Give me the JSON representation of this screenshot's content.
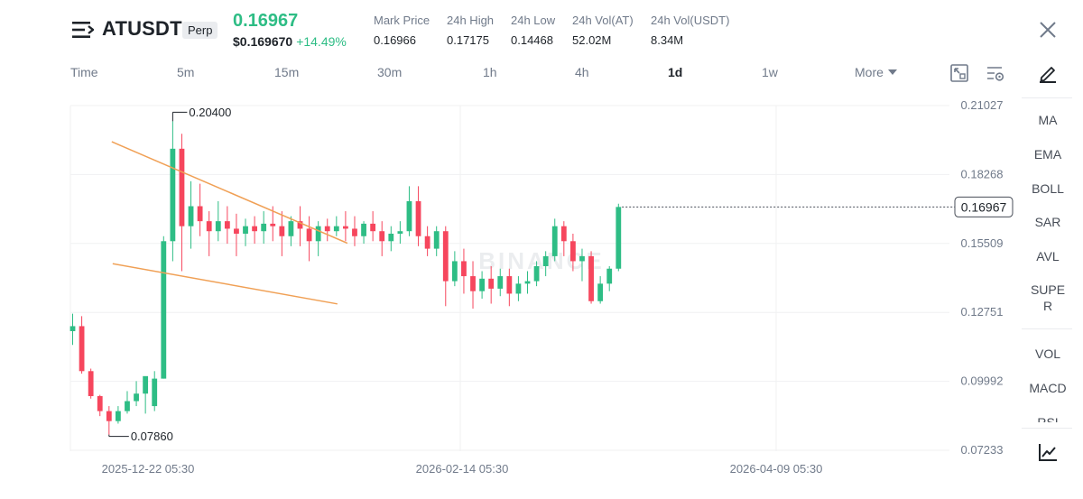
{
  "header": {
    "symbol": "ATUSDT",
    "contract_type": "Perp",
    "last_price": "0.16967",
    "usd_price": "$0.169670",
    "change_pct": "+14.49%",
    "stats": [
      {
        "label": "Mark Price",
        "value": "0.16966"
      },
      {
        "label": "24h High",
        "value": "0.17175"
      },
      {
        "label": "24h Low",
        "value": "0.14468"
      },
      {
        "label": "24h Vol(AT)",
        "value": "52.02M"
      },
      {
        "label": "24h Vol(USDT)",
        "value": "8.34M"
      }
    ],
    "up_color": "#2ebd85",
    "down_color": "#f6465d"
  },
  "timeframes": {
    "items": [
      "Time",
      "5m",
      "15m",
      "30m",
      "1h",
      "4h",
      "1d",
      "1w"
    ],
    "active": "1d",
    "more_label": "More"
  },
  "indicators": {
    "main": [
      "MA",
      "EMA",
      "BOLL",
      "SAR",
      "AVL"
    ],
    "super_line1": "SUPE",
    "super_line2": "R",
    "sub": [
      "VOL",
      "MACD",
      "RSI"
    ]
  },
  "chart_data": {
    "type": "candlestick",
    "symbol": "ATUSDT",
    "interval": "1d",
    "y_ticks": [
      "0.21027",
      "0.18268",
      "0.15509",
      "0.12751",
      "0.09992",
      "0.07233"
    ],
    "ylim": [
      0.07233,
      0.21027
    ],
    "x_ticks": [
      "2025-12-22 05:30",
      "2026-02-14 05:30",
      "2026-04-09 05:30"
    ],
    "current_price_label": "0.16967",
    "high_marker": "0.20400",
    "low_marker": "0.07860",
    "watermark": "BINANCE",
    "trendlines": [
      {
        "name": "upper",
        "from": [
          4.3,
          0.1958
        ],
        "to": [
          30.2,
          0.1552
        ]
      },
      {
        "name": "lower",
        "from": [
          4.4,
          0.147
        ],
        "to": [
          29.1,
          0.1309
        ]
      }
    ],
    "up_color": "#2ebd85",
    "down_color": "#f6465d",
    "trendline_color": "#f0a055",
    "candles": [
      [
        0.12,
        0.127,
        0.122,
        0.1145
      ],
      [
        0.122,
        0.126,
        0.104,
        0.103
      ],
      [
        0.104,
        0.105,
        0.094,
        0.093
      ],
      [
        0.094,
        0.0945,
        0.088,
        0.086
      ],
      [
        0.088,
        0.09,
        0.084,
        0.0786
      ],
      [
        0.084,
        0.09,
        0.088,
        0.083
      ],
      [
        0.088,
        0.096,
        0.092,
        0.087
      ],
      [
        0.092,
        0.1,
        0.095,
        0.09
      ],
      [
        0.095,
        0.099,
        0.102,
        0.087
      ],
      [
        0.09,
        0.104,
        0.101,
        0.088
      ],
      [
        0.101,
        0.158,
        0.156,
        0.101
      ],
      [
        0.156,
        0.204,
        0.193,
        0.148
      ],
      [
        0.193,
        0.199,
        0.162,
        0.144
      ],
      [
        0.162,
        0.18,
        0.17,
        0.153
      ],
      [
        0.17,
        0.179,
        0.164,
        0.158
      ],
      [
        0.164,
        0.168,
        0.16,
        0.15
      ],
      [
        0.16,
        0.172,
        0.164,
        0.156
      ],
      [
        0.164,
        0.17,
        0.161,
        0.155
      ],
      [
        0.161,
        0.167,
        0.159,
        0.15
      ],
      [
        0.159,
        0.165,
        0.162,
        0.154
      ],
      [
        0.162,
        0.166,
        0.16,
        0.155
      ],
      [
        0.16,
        0.168,
        0.163,
        0.155
      ],
      [
        0.163,
        0.17,
        0.162,
        0.156
      ],
      [
        0.162,
        0.168,
        0.158,
        0.15
      ],
      [
        0.158,
        0.166,
        0.164,
        0.154
      ],
      [
        0.164,
        0.17,
        0.161,
        0.154
      ],
      [
        0.161,
        0.166,
        0.156,
        0.148
      ],
      [
        0.156,
        0.164,
        0.162,
        0.15
      ],
      [
        0.162,
        0.165,
        0.16,
        0.156
      ],
      [
        0.16,
        0.166,
        0.162,
        0.158
      ],
      [
        0.162,
        0.168,
        0.161,
        0.156
      ],
      [
        0.161,
        0.166,
        0.158,
        0.154
      ],
      [
        0.158,
        0.164,
        0.163,
        0.155
      ],
      [
        0.163,
        0.168,
        0.16,
        0.156
      ],
      [
        0.16,
        0.164,
        0.156,
        0.15
      ],
      [
        0.156,
        0.162,
        0.159,
        0.152
      ],
      [
        0.159,
        0.164,
        0.16,
        0.155
      ],
      [
        0.16,
        0.178,
        0.172,
        0.158
      ],
      [
        0.172,
        0.178,
        0.158,
        0.154
      ],
      [
        0.158,
        0.162,
        0.153,
        0.15
      ],
      [
        0.153,
        0.162,
        0.16,
        0.15
      ],
      [
        0.16,
        0.162,
        0.14,
        0.13
      ],
      [
        0.14,
        0.152,
        0.148,
        0.138
      ],
      [
        0.148,
        0.153,
        0.142,
        0.135
      ],
      [
        0.142,
        0.148,
        0.136,
        0.129
      ],
      [
        0.136,
        0.144,
        0.141,
        0.133
      ],
      [
        0.141,
        0.146,
        0.137,
        0.131
      ],
      [
        0.137,
        0.145,
        0.142,
        0.134
      ],
      [
        0.142,
        0.145,
        0.135,
        0.13
      ],
      [
        0.135,
        0.142,
        0.139,
        0.132
      ],
      [
        0.139,
        0.144,
        0.14,
        0.135
      ],
      [
        0.14,
        0.148,
        0.146,
        0.138
      ],
      [
        0.146,
        0.152,
        0.15,
        0.142
      ],
      [
        0.15,
        0.165,
        0.162,
        0.148
      ],
      [
        0.162,
        0.164,
        0.156,
        0.15
      ],
      [
        0.156,
        0.159,
        0.148,
        0.144
      ],
      [
        0.148,
        0.153,
        0.15,
        0.14
      ],
      [
        0.15,
        0.152,
        0.132,
        0.131
      ],
      [
        0.132,
        0.142,
        0.139,
        0.131
      ],
      [
        0.139,
        0.146,
        0.145,
        0.136
      ],
      [
        0.145,
        0.171,
        0.1697,
        0.144
      ]
    ]
  }
}
